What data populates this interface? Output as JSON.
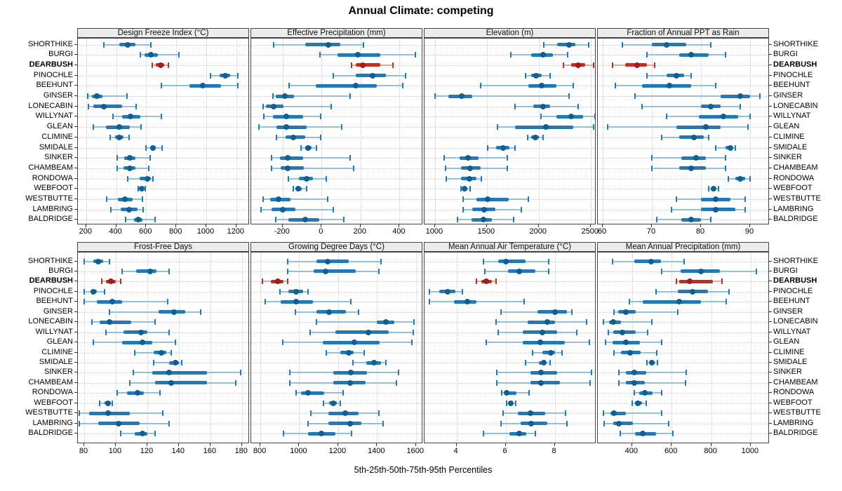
{
  "title": "Annual Climate: competing",
  "caption": "5th-25th-50th-75th-95th Percentiles",
  "sites": [
    "SHORTHIKE",
    "BURGI",
    "DEARBUSH",
    "PINOCHLE",
    "BEEHUNT",
    "GINSER",
    "LONECABIN",
    "WILLYNAT",
    "GLEAN",
    "CLIMINE",
    "SMIDALE",
    "SINKER",
    "CHAMBEAM",
    "RONDOWA",
    "WEBFOOT",
    "WESTBUTTE",
    "LAMBRING",
    "BALDRIDGE"
  ],
  "highlight_site": "DEARBUSH",
  "colors": {
    "blue_dot": "#0f5f93",
    "blue_box": "#2279b5",
    "blue_whisker": "#93c1dd",
    "red_dot": "#a31c1c",
    "red_box": "#bb2f26",
    "red_whisker": "#e0a79f",
    "strip_bg": "#ececec",
    "grid": "#c9c9c9",
    "border": "#444444"
  },
  "chart_data": {
    "type": "dotplot-percentiles",
    "percentiles": [
      5,
      25,
      50,
      75,
      95
    ],
    "legend_note": "red = highlighted site DEARBUSH, blue = all other sites",
    "layout": {
      "rows": 2,
      "cols": 4,
      "grid": "dotted",
      "y_labels": "both sides"
    },
    "panels": [
      {
        "title": "Design Freeze Index (°C)",
        "xlim": [
          145,
          1290
        ],
        "ticks": [
          200,
          400,
          600,
          800,
          1000,
          1200
        ],
        "values": [
          [
            320,
            420,
            475,
            530,
            630
          ],
          [
            560,
            590,
            630,
            680,
            820
          ],
          [
            640,
            665,
            695,
            720,
            750
          ],
          [
            1030,
            1090,
            1125,
            1160,
            1210
          ],
          [
            700,
            890,
            975,
            1100,
            1210
          ],
          [
            210,
            240,
            270,
            310,
            470
          ],
          [
            215,
            250,
            320,
            440,
            535
          ],
          [
            380,
            440,
            495,
            560,
            700
          ],
          [
            250,
            330,
            420,
            490,
            565
          ],
          [
            360,
            395,
            420,
            450,
            485
          ],
          [
            600,
            625,
            645,
            665,
            705
          ],
          [
            405,
            455,
            490,
            530,
            625
          ],
          [
            405,
            450,
            490,
            530,
            615
          ],
          [
            475,
            555,
            610,
            630,
            645
          ],
          [
            545,
            558,
            570,
            580,
            592
          ],
          [
            335,
            410,
            460,
            510,
            575
          ],
          [
            365,
            430,
            485,
            540,
            580
          ],
          [
            465,
            520,
            545,
            575,
            660
          ]
        ]
      },
      {
        "title": "Effective Precipitation (mm)",
        "xlim": [
          -361,
          521
        ],
        "ticks": [
          -200,
          0,
          200,
          400
        ],
        "values": [
          [
            -245,
            -85,
            35,
            95,
            215
          ],
          [
            -10,
            80,
            185,
            300,
            480
          ],
          [
            155,
            175,
            210,
            300,
            365
          ],
          [
            60,
            175,
            260,
            330,
            430
          ],
          [
            -165,
            -30,
            175,
            285,
            415
          ],
          [
            -250,
            -235,
            -190,
            -140,
            145
          ],
          [
            -300,
            -285,
            -245,
            -195,
            50
          ],
          [
            -295,
            -250,
            -180,
            -95,
            -5
          ],
          [
            -320,
            -230,
            -180,
            -75,
            105
          ],
          [
            -230,
            -185,
            -145,
            -85,
            -5
          ],
          [
            -105,
            -85,
            -70,
            -50,
            -25
          ],
          [
            -255,
            -215,
            -175,
            -95,
            145
          ],
          [
            -255,
            -210,
            -175,
            -90,
            165
          ],
          [
            -170,
            -115,
            -75,
            -45,
            25
          ],
          [
            -145,
            -130,
            -120,
            -100,
            -75
          ],
          [
            -300,
            -265,
            -220,
            -160,
            30
          ],
          [
            -310,
            -255,
            -200,
            -135,
            60
          ],
          [
            -235,
            -170,
            -85,
            -10,
            115
          ]
        ]
      },
      {
        "title": "Elevation (m)",
        "xlim": [
          899,
          2556
        ],
        "ticks": [
          1000,
          1500,
          2000,
          2500
        ],
        "values": [
          [
            2050,
            2180,
            2290,
            2350,
            2480
          ],
          [
            1730,
            1930,
            2040,
            2140,
            2280
          ],
          [
            2240,
            2310,
            2380,
            2450,
            2530
          ],
          [
            1870,
            1930,
            1975,
            2030,
            2110
          ],
          [
            1440,
            1900,
            2030,
            2170,
            2330
          ],
          [
            1000,
            1130,
            1260,
            1360,
            2290
          ],
          [
            1770,
            1950,
            2040,
            2110,
            2380
          ],
          [
            2020,
            2170,
            2310,
            2430,
            2540
          ],
          [
            1600,
            1770,
            2070,
            2330,
            2530
          ],
          [
            1890,
            1930,
            1965,
            2000,
            2040
          ],
          [
            1510,
            1590,
            1655,
            1720,
            1770
          ],
          [
            1090,
            1240,
            1320,
            1420,
            1700
          ],
          [
            1100,
            1250,
            1340,
            1440,
            1700
          ],
          [
            1110,
            1250,
            1335,
            1400,
            1450
          ],
          [
            1250,
            1270,
            1285,
            1310,
            1340
          ],
          [
            1270,
            1400,
            1505,
            1710,
            1900
          ],
          [
            1270,
            1360,
            1475,
            1580,
            1830
          ],
          [
            1220,
            1350,
            1465,
            1550,
            1760
          ]
        ]
      },
      {
        "title": "Fraction of Annual PPT as Rain",
        "xlim": [
          59,
          94
        ],
        "ticks": [
          60,
          70,
          80,
          90
        ],
        "values": [
          [
            64,
            70,
            73,
            77,
            82
          ],
          [
            69,
            75.5,
            78,
            81.5,
            85
          ],
          [
            62,
            64.5,
            67,
            69,
            70.5
          ],
          [
            69,
            73,
            75,
            76.5,
            78
          ],
          [
            62.5,
            68,
            73.5,
            78,
            83
          ],
          [
            66.5,
            84,
            88,
            90,
            92
          ],
          [
            68,
            80,
            82,
            84,
            88
          ],
          [
            73,
            79.5,
            84.5,
            87.5,
            90
          ],
          [
            61,
            75,
            81,
            84,
            89.5
          ],
          [
            72,
            75.5,
            78.5,
            80.5,
            81.5
          ],
          [
            83,
            85,
            86,
            86.5,
            87
          ],
          [
            70,
            76,
            79,
            81,
            85
          ],
          [
            70,
            75.5,
            78,
            81,
            85
          ],
          [
            85.5,
            87,
            88,
            89,
            90
          ],
          [
            81.5,
            82,
            82.5,
            83,
            83.5
          ],
          [
            75,
            80,
            83,
            86,
            89
          ],
          [
            74,
            80,
            83,
            87,
            89
          ],
          [
            71,
            76,
            78,
            80,
            82
          ]
        ]
      },
      {
        "title": "Frost-Free Days",
        "xlim": [
          76,
          185
        ],
        "ticks": [
          80,
          100,
          120,
          140,
          160,
          180
        ],
        "values": [
          [
            80,
            86,
            89,
            92,
            96
          ],
          [
            104,
            113,
            122,
            126,
            134
          ],
          [
            91,
            94,
            97,
            100,
            103
          ],
          [
            80,
            84,
            86,
            88,
            93
          ],
          [
            80,
            88,
            98,
            104,
            133
          ],
          [
            96,
            127,
            137,
            144,
            154
          ],
          [
            85,
            90,
            96,
            110,
            125
          ],
          [
            94,
            105,
            116,
            120,
            134
          ],
          [
            86,
            104,
            117,
            123,
            138
          ],
          [
            112,
            124,
            129,
            132,
            135
          ],
          [
            124,
            134,
            138,
            140,
            142
          ],
          [
            111,
            123,
            134,
            158,
            179
          ],
          [
            109,
            125,
            135,
            158,
            176
          ],
          [
            101,
            107,
            114,
            118,
            128
          ],
          [
            90,
            93,
            95,
            96,
            98
          ],
          [
            77,
            83,
            95,
            109,
            130
          ],
          [
            77,
            89,
            102,
            115,
            134
          ],
          [
            103,
            112,
            117,
            120,
            125
          ]
        ]
      },
      {
        "title": "Growing Degree Days (°C)",
        "xlim": [
          753,
          1637
        ],
        "ticks": [
          800,
          1000,
          1200,
          1400,
          1600
        ],
        "values": [
          [
            940,
            1090,
            1145,
            1255,
            1420
          ],
          [
            940,
            1075,
            1135,
            1290,
            1410
          ],
          [
            810,
            855,
            890,
            920,
            940
          ],
          [
            900,
            945,
            985,
            1020,
            1045
          ],
          [
            825,
            905,
            985,
            1070,
            1265
          ],
          [
            980,
            1090,
            1155,
            1240,
            1305
          ],
          [
            1090,
            1400,
            1445,
            1490,
            1590
          ],
          [
            1055,
            1185,
            1355,
            1460,
            1585
          ],
          [
            915,
            1120,
            1285,
            1415,
            1580
          ],
          [
            1140,
            1210,
            1255,
            1280,
            1335
          ],
          [
            1275,
            1345,
            1385,
            1420,
            1445
          ],
          [
            950,
            1175,
            1265,
            1350,
            1510
          ],
          [
            950,
            1175,
            1260,
            1340,
            1500
          ],
          [
            985,
            1010,
            1045,
            1130,
            1225
          ],
          [
            1125,
            1155,
            1175,
            1195,
            1210
          ],
          [
            1060,
            1150,
            1235,
            1305,
            1410
          ],
          [
            1045,
            1150,
            1260,
            1320,
            1430
          ],
          [
            920,
            1045,
            1115,
            1185,
            1270
          ]
        ]
      },
      {
        "title": "Mean Annual Air Temperature (°C)",
        "xlim": [
          2.7,
          9.7
        ],
        "ticks": [
          4,
          6,
          8
        ],
        "values": [
          [
            5.1,
            5.7,
            6.0,
            6.8,
            7.75
          ],
          [
            5.15,
            6.1,
            6.55,
            7.2,
            7.75
          ],
          [
            4.8,
            5.0,
            5.2,
            5.45,
            5.6
          ],
          [
            2.9,
            3.3,
            3.65,
            3.95,
            4.25
          ],
          [
            2.9,
            3.9,
            4.45,
            4.8,
            6.75
          ],
          [
            5.8,
            7.3,
            8.0,
            8.5,
            8.7
          ],
          [
            5.6,
            6.9,
            7.7,
            8.0,
            9.3
          ],
          [
            5.7,
            6.7,
            7.5,
            8.1,
            8.9
          ],
          [
            5.2,
            6.7,
            7.4,
            8.4,
            9.4
          ],
          [
            7.1,
            7.5,
            7.85,
            8.0,
            8.3
          ],
          [
            6.8,
            7.35,
            7.55,
            7.65,
            7.8
          ],
          [
            5.65,
            7.0,
            7.45,
            8.1,
            9.5
          ],
          [
            5.65,
            7.0,
            7.45,
            8.2,
            9.45
          ],
          [
            5.85,
            5.95,
            6.05,
            6.45,
            6.95
          ],
          [
            6.05,
            6.15,
            6.2,
            6.3,
            6.4
          ],
          [
            5.9,
            6.5,
            7.0,
            7.6,
            8.45
          ],
          [
            5.8,
            6.6,
            7.05,
            7.7,
            8.5
          ],
          [
            5.1,
            6.15,
            6.55,
            6.85,
            7.2
          ]
        ]
      },
      {
        "title": "Mean Annual Precipitation (mm)",
        "xlim": [
          227,
          1096
        ],
        "ticks": [
          400,
          600,
          800,
          1000
        ],
        "values": [
          [
            300,
            410,
            495,
            545,
            665
          ],
          [
            550,
            645,
            750,
            845,
            1030
          ],
          [
            625,
            640,
            690,
            810,
            855
          ],
          [
            520,
            630,
            705,
            785,
            890
          ],
          [
            385,
            455,
            640,
            750,
            875
          ],
          [
            310,
            330,
            370,
            420,
            630
          ],
          [
            255,
            285,
            305,
            345,
            500
          ],
          [
            280,
            305,
            350,
            420,
            480
          ],
          [
            265,
            300,
            370,
            440,
            550
          ],
          [
            310,
            345,
            390,
            445,
            525
          ],
          [
            475,
            490,
            500,
            515,
            530
          ],
          [
            335,
            370,
            410,
            470,
            675
          ],
          [
            335,
            370,
            410,
            465,
            670
          ],
          [
            410,
            435,
            465,
            505,
            550
          ],
          [
            400,
            415,
            430,
            450,
            470
          ],
          [
            255,
            290,
            310,
            370,
            550
          ],
          [
            260,
            305,
            335,
            405,
            585
          ],
          [
            340,
            415,
            455,
            520,
            605
          ]
        ]
      }
    ]
  }
}
